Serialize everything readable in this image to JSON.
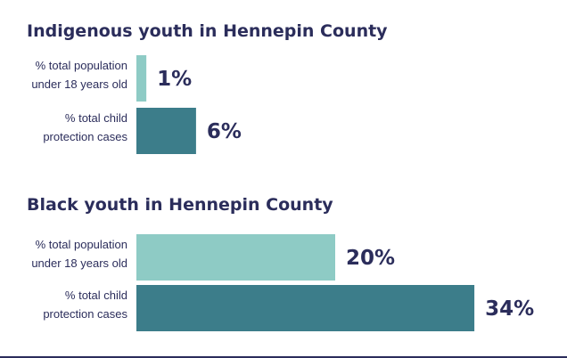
{
  "chart_data": [
    {
      "type": "bar",
      "orientation": "horizontal",
      "title": "Indigenous youth in Hennepin County",
      "categories": [
        [
          "% total population",
          "under 18 years old"
        ],
        [
          "% total child",
          "protection cases"
        ]
      ],
      "values": [
        1,
        6
      ],
      "value_labels": [
        "1%",
        "6%"
      ],
      "colors": [
        "#8ecbc5",
        "#3c7d8a"
      ],
      "unit": "%"
    },
    {
      "type": "bar",
      "orientation": "horizontal",
      "title": "Black youth in Hennepin County",
      "categories": [
        [
          "% total population",
          "under 18 years old"
        ],
        [
          "% total child",
          "protection cases"
        ]
      ],
      "values": [
        20,
        34
      ],
      "value_labels": [
        "20%",
        "34%"
      ],
      "colors": [
        "#8ecbc5",
        "#3c7d8a"
      ],
      "unit": "%"
    }
  ],
  "colors": {
    "text": "#2b2d5b",
    "bar_population": "#8ecbc5",
    "bar_cases": "#3c7d8a",
    "bottom_rule": "#2b2d5b"
  }
}
